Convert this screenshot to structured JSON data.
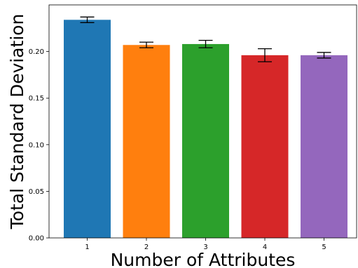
{
  "chart_data": {
    "type": "bar",
    "categories": [
      "1",
      "2",
      "3",
      "4",
      "5"
    ],
    "values": [
      0.234,
      0.207,
      0.208,
      0.196,
      0.196
    ],
    "errors": [
      0.003,
      0.003,
      0.004,
      0.007,
      0.003
    ],
    "colors": [
      "#1f77b4",
      "#ff7f0e",
      "#2ca02c",
      "#d62728",
      "#9467bd"
    ],
    "xlabel": "Number of Attributes",
    "ylabel": "Total Standard Deviation",
    "ylim": [
      0,
      0.25
    ],
    "yticks": [
      0.0,
      0.05,
      0.1,
      0.15,
      0.2
    ],
    "ytick_labels": [
      "0.00",
      "0.05",
      "0.10",
      "0.15",
      "0.20"
    ],
    "grid": false,
    "legend": "none"
  }
}
